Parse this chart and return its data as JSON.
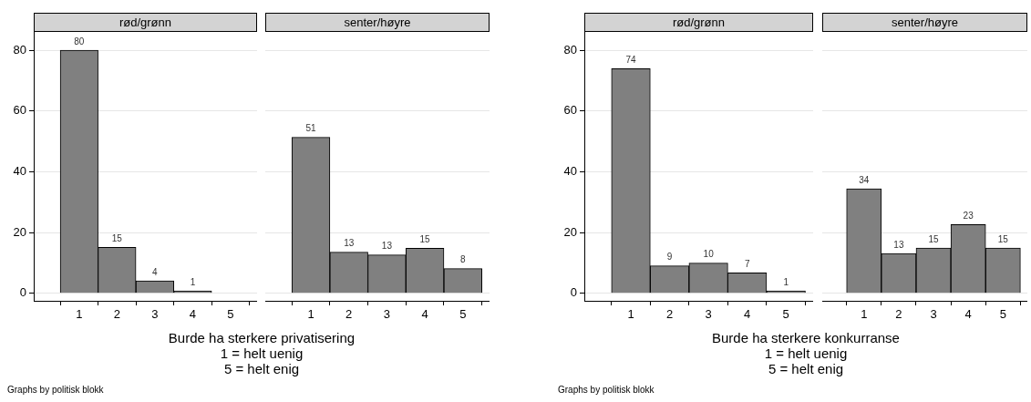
{
  "chart_data": [
    {
      "type": "histogram",
      "title": "rød/grønn",
      "bins": [
        0.5,
        1.5,
        2.5,
        3.5,
        4.5,
        5.5
      ],
      "values": [
        80,
        15.1,
        4.1,
        0.8,
        0
      ],
      "value_labels": [
        "80",
        "15",
        "4",
        "1",
        null
      ],
      "color": "#808080",
      "xlim": [
        -0.2,
        5.7
      ],
      "xticks": [
        1,
        2,
        3,
        4,
        5
      ],
      "ylim": [
        -2.5,
        86
      ],
      "yticks": [
        0,
        20,
        40,
        60,
        80
      ],
      "grid": "y",
      "xlabel": "Burde ha sterkere privatisering\n1 = helt uenig\n5 = helt enig",
      "annotations": [
        "Graphs by politisk blokk"
      ]
    },
    {
      "type": "histogram",
      "title": "senter/høyre",
      "bins": [
        0.5,
        1.5,
        2.5,
        3.5,
        4.5,
        5.5
      ],
      "values": [
        51.3,
        13.5,
        12.6,
        14.8,
        8.1
      ],
      "value_labels": [
        "51",
        "13",
        "13",
        "15",
        "8"
      ],
      "color": "#808080",
      "xlim": [
        -0.2,
        5.7
      ],
      "xticks": [
        1,
        2,
        3,
        4,
        5
      ],
      "ylim": [
        -2.5,
        80
      ],
      "yticks": [
        0,
        20,
        40,
        60,
        80
      ],
      "grid": "y",
      "tick_labels": "x"
    },
    {
      "type": "histogram",
      "title": "rød/grønn",
      "bins": [
        0.5,
        1.5,
        2.5,
        3.5,
        4.5,
        5.5
      ],
      "values": [
        73.9,
        9,
        9.9,
        6.7,
        0.8
      ],
      "value_labels": [
        "74",
        "9",
        "10",
        "7",
        "1"
      ],
      "color": "#808080",
      "xlim": [
        -0.2,
        5.7
      ],
      "xticks": [
        1,
        2,
        3,
        4,
        5
      ],
      "ylim": [
        -2.5,
        86
      ],
      "yticks": [
        0,
        20,
        40,
        60,
        80
      ],
      "grid": "y",
      "xlabel": "Burde ha sterkere konkurranse\n1 = helt uenig\n5 = helt enig",
      "annotations": [
        "Graphs by politisk blokk"
      ]
    },
    {
      "type": "histogram",
      "title": "senter/høyre",
      "bins": [
        0.5,
        1.5,
        2.5,
        3.5,
        4.5,
        5.5
      ],
      "values": [
        34.4,
        13.1,
        14.9,
        22.6,
        14.9
      ],
      "value_labels": [
        "34",
        "13",
        "15",
        "23",
        "15"
      ],
      "color": "#808080",
      "xlim": [
        -0.2,
        5.7
      ],
      "xticks": [
        1,
        2,
        3,
        4,
        5
      ],
      "ylim": [
        -2.5,
        80
      ],
      "yticks": [
        0,
        20,
        40,
        60,
        80
      ],
      "grid": "y",
      "tick_labels": "x"
    }
  ]
}
